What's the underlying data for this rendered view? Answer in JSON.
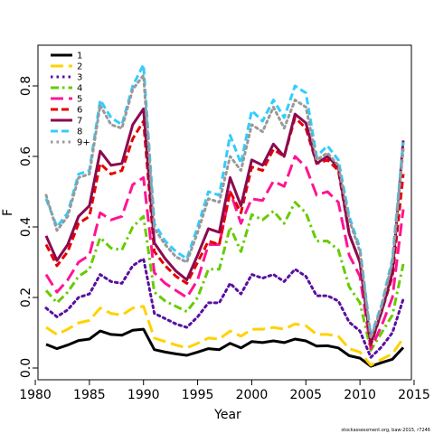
{
  "chart_data": {
    "type": "line",
    "title": "",
    "xlabel": "Year",
    "ylabel": "F",
    "xlim": [
      1980,
      2015
    ],
    "ylim": [
      0.0,
      0.85
    ],
    "xticks": [
      1980,
      1985,
      1990,
      1995,
      2000,
      2005,
      2010,
      2015
    ],
    "yticks": [
      0.0,
      0.2,
      0.4,
      0.6,
      0.8
    ],
    "ytick_labels": [
      "0.0",
      "0.2",
      "0.4",
      "0.6",
      "0.8"
    ],
    "grid": false,
    "legend_position": "top-left",
    "credit": "stockassessment.org, baw-2015, r7246",
    "x": [
      1981,
      1982,
      1983,
      1984,
      1985,
      1986,
      1987,
      1988,
      1989,
      1990,
      1991,
      1992,
      1993,
      1994,
      1995,
      1996,
      1997,
      1998,
      1999,
      2000,
      2001,
      2002,
      2003,
      2004,
      2005,
      2006,
      2007,
      2008,
      2009,
      2010,
      2011,
      2012,
      2013,
      2014
    ],
    "series": [
      {
        "name": "1",
        "color": "#000000",
        "dash": "solid",
        "values": [
          0.067,
          0.055,
          0.065,
          0.078,
          0.082,
          0.105,
          0.095,
          0.093,
          0.107,
          0.11,
          0.052,
          0.045,
          0.04,
          0.036,
          0.045,
          0.055,
          0.052,
          0.07,
          0.057,
          0.075,
          0.072,
          0.077,
          0.072,
          0.082,
          0.077,
          0.062,
          0.063,
          0.057,
          0.035,
          0.028,
          0.005,
          0.015,
          0.025,
          0.058
        ]
      },
      {
        "name": "2",
        "color": "#FFD200",
        "dash": "longdash",
        "values": [
          0.115,
          0.095,
          0.11,
          0.128,
          0.135,
          0.17,
          0.155,
          0.15,
          0.17,
          0.175,
          0.085,
          0.075,
          0.065,
          0.057,
          0.07,
          0.085,
          0.082,
          0.105,
          0.09,
          0.11,
          0.11,
          0.115,
          0.11,
          0.125,
          0.12,
          0.095,
          0.095,
          0.09,
          0.055,
          0.045,
          0.008,
          0.025,
          0.04,
          0.085
        ]
      },
      {
        "name": "3",
        "color": "#5A0FA0",
        "dash": "dotted",
        "values": [
          0.17,
          0.145,
          0.165,
          0.2,
          0.21,
          0.265,
          0.245,
          0.24,
          0.29,
          0.31,
          0.155,
          0.14,
          0.125,
          0.115,
          0.145,
          0.185,
          0.185,
          0.24,
          0.21,
          0.265,
          0.255,
          0.265,
          0.245,
          0.28,
          0.26,
          0.205,
          0.205,
          0.19,
          0.13,
          0.105,
          0.03,
          0.06,
          0.1,
          0.195
        ]
      },
      {
        "name": "4",
        "color": "#66CC00",
        "dash": "dashdot",
        "values": [
          0.22,
          0.185,
          0.215,
          0.26,
          0.28,
          0.37,
          0.34,
          0.335,
          0.4,
          0.43,
          0.215,
          0.19,
          0.175,
          0.16,
          0.2,
          0.28,
          0.28,
          0.4,
          0.33,
          0.435,
          0.42,
          0.445,
          0.41,
          0.47,
          0.44,
          0.36,
          0.36,
          0.335,
          0.23,
          0.185,
          0.05,
          0.1,
          0.15,
          0.295
        ]
      },
      {
        "name": "5",
        "color": "#FF1493",
        "dash": "longdash",
        "values": [
          0.265,
          0.215,
          0.25,
          0.3,
          0.32,
          0.44,
          0.42,
          0.43,
          0.52,
          0.54,
          0.27,
          0.24,
          0.22,
          0.2,
          0.25,
          0.35,
          0.35,
          0.5,
          0.41,
          0.48,
          0.475,
          0.53,
          0.515,
          0.6,
          0.57,
          0.49,
          0.5,
          0.47,
          0.32,
          0.26,
          0.055,
          0.12,
          0.2,
          0.45
        ]
      },
      {
        "name": "6",
        "color": "#E60000",
        "dash": "dashed",
        "values": [
          0.35,
          0.29,
          0.33,
          0.41,
          0.43,
          0.58,
          0.55,
          0.56,
          0.65,
          0.7,
          0.33,
          0.29,
          0.26,
          0.24,
          0.3,
          0.36,
          0.35,
          0.5,
          0.44,
          0.57,
          0.56,
          0.62,
          0.6,
          0.71,
          0.68,
          0.58,
          0.59,
          0.56,
          0.38,
          0.3,
          0.065,
          0.16,
          0.26,
          0.55
        ]
      },
      {
        "name": "7",
        "color": "#8B0A50",
        "dash": "solid",
        "values": [
          0.375,
          0.305,
          0.35,
          0.43,
          0.46,
          0.615,
          0.575,
          0.58,
          0.69,
          0.735,
          0.355,
          0.31,
          0.275,
          0.25,
          0.32,
          0.395,
          0.385,
          0.54,
          0.46,
          0.59,
          0.575,
          0.635,
          0.6,
          0.72,
          0.695,
          0.58,
          0.6,
          0.57,
          0.38,
          0.3,
          0.07,
          0.16,
          0.27,
          0.645
        ]
      },
      {
        "name": "8",
        "color": "#33CCFF",
        "dash": "dashed",
        "values": [
          0.48,
          0.4,
          0.44,
          0.55,
          0.56,
          0.76,
          0.71,
          0.69,
          0.8,
          0.86,
          0.41,
          0.36,
          0.33,
          0.31,
          0.4,
          0.5,
          0.49,
          0.66,
          0.58,
          0.73,
          0.7,
          0.76,
          0.71,
          0.8,
          0.78,
          0.6,
          0.63,
          0.59,
          0.43,
          0.34,
          0.09,
          0.18,
          0.31,
          0.64
        ]
      },
      {
        "name": "9+",
        "color": "#999999",
        "dash": "dotted",
        "values": [
          0.49,
          0.39,
          0.43,
          0.54,
          0.55,
          0.745,
          0.69,
          0.68,
          0.79,
          0.83,
          0.395,
          0.35,
          0.315,
          0.3,
          0.385,
          0.48,
          0.47,
          0.6,
          0.56,
          0.69,
          0.67,
          0.74,
          0.68,
          0.76,
          0.74,
          0.59,
          0.61,
          0.575,
          0.42,
          0.33,
          0.085,
          0.175,
          0.3,
          0.62
        ]
      }
    ]
  }
}
